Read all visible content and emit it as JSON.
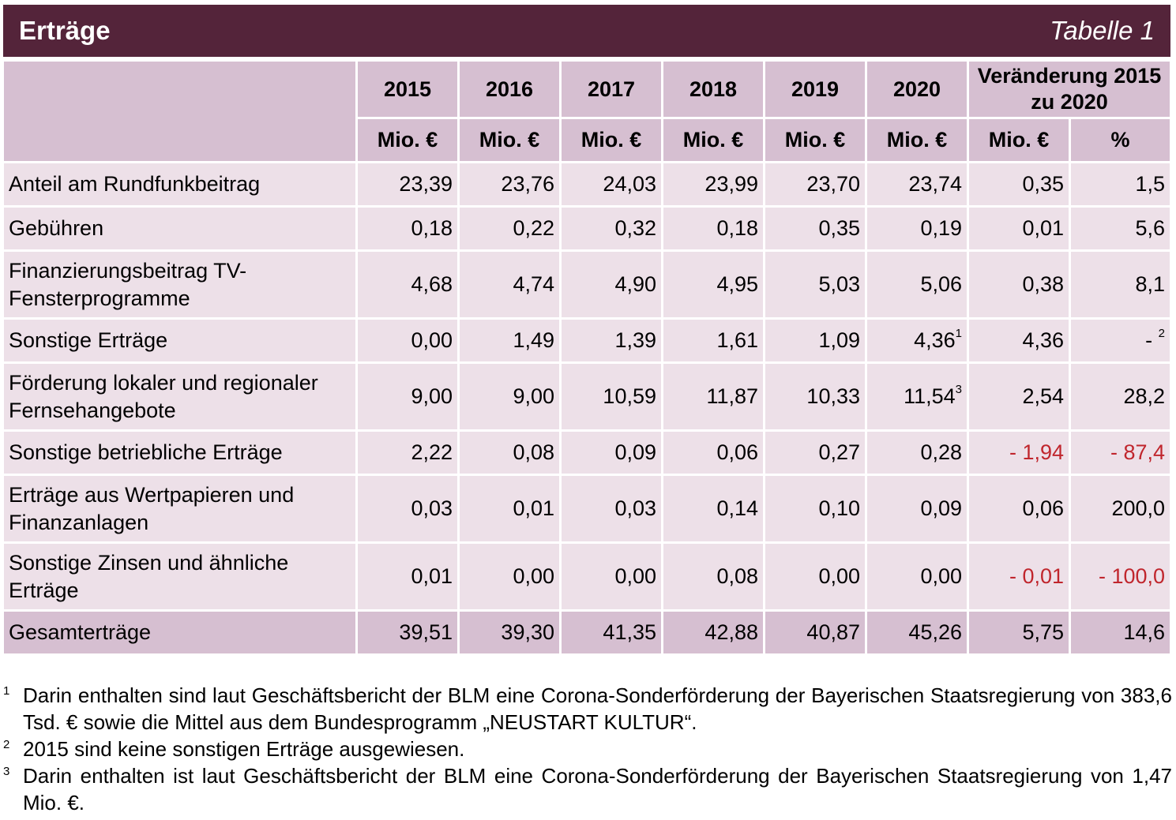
{
  "title": "Erträge",
  "table_number": "Tabelle 1",
  "header": {
    "years": [
      "2015",
      "2016",
      "2017",
      "2018",
      "2019",
      "2020"
    ],
    "change_label": "Veränderung 2015 zu 2020",
    "unit": "Mio. €",
    "percent": "%"
  },
  "rows": [
    {
      "label": "Anteil am Rundfunkbeitrag",
      "values": [
        "23,39",
        "23,76",
        "24,03",
        "23,99",
        "23,70",
        "23,74"
      ],
      "sup2020": "",
      "change_abs": "0,35",
      "change_pct": "1,5",
      "pct_sup": ""
    },
    {
      "label": "Gebühren",
      "values": [
        "0,18",
        "0,22",
        "0,32",
        "0,18",
        "0,35",
        "0,19"
      ],
      "sup2020": "",
      "change_abs": "0,01",
      "change_pct": "5,6",
      "pct_sup": ""
    },
    {
      "label": "Finanzierungsbeitrag TV-Fensterprogramme",
      "values": [
        "4,68",
        "4,74",
        "4,90",
        "4,95",
        "5,03",
        "5,06"
      ],
      "sup2020": "",
      "change_abs": "0,38",
      "change_pct": "8,1",
      "pct_sup": ""
    },
    {
      "label": "Sonstige Erträge",
      "values": [
        "0,00",
        "1,49",
        "1,39",
        "1,61",
        "1,09",
        "4,36"
      ],
      "sup2020": "1",
      "change_abs": "4,36",
      "change_pct": "-",
      "pct_sup": "2"
    },
    {
      "label": "Förderung lokaler und regionaler Fernsehangebote",
      "values": [
        "9,00",
        "9,00",
        "10,59",
        "11,87",
        "10,33",
        "11,54"
      ],
      "sup2020": "3",
      "change_abs": "2,54",
      "change_pct": "28,2",
      "pct_sup": ""
    },
    {
      "label": "Sonstige betriebliche Erträge",
      "values": [
        "2,22",
        "0,08",
        "0,09",
        "0,06",
        "0,27",
        "0,28"
      ],
      "sup2020": "",
      "change_abs": "- 1,94",
      "change_pct": "- 87,4",
      "pct_sup": "",
      "negative": true
    },
    {
      "label": "Erträge aus Wertpapieren und Finanzanlagen",
      "values": [
        "0,03",
        "0,01",
        "0,03",
        "0,14",
        "0,10",
        "0,09"
      ],
      "sup2020": "",
      "change_abs": "0,06",
      "change_pct": "200,0",
      "pct_sup": ""
    },
    {
      "label": "Sonstige Zinsen und ähnliche Erträge",
      "values": [
        "0,01",
        "0,00",
        "0,00",
        "0,08",
        "0,00",
        "0,00"
      ],
      "sup2020": "",
      "change_abs": "- 0,01",
      "change_pct": "- 100,0",
      "pct_sup": "",
      "negative": true
    }
  ],
  "total": {
    "label": "Gesamterträge",
    "values": [
      "39,51",
      "39,30",
      "41,35",
      "42,88",
      "40,87",
      "45,26"
    ],
    "change_abs": "5,75",
    "change_pct": "14,6"
  },
  "footnotes": [
    {
      "mark": "1",
      "text": "Darin enthalten sind laut Geschäftsbericht der BLM eine Corona-Sonderförderung der Bayerischen Staatsregierung von 383,6 Tsd. € sowie die Mittel aus dem Bundesprogramm „NEUSTART KULTUR“."
    },
    {
      "mark": "2",
      "text": "2015 sind keine sonstigen Erträge ausgewiesen."
    },
    {
      "mark": "3",
      "text": "Darin enthalten ist laut Geschäftsbericht der BLM eine Corona-Sonderförderung der Bayerischen Staatsregierung von 1,47 Mio. €."
    }
  ],
  "colors": {
    "title_bg": "#54243a",
    "header_bg": "#d6bfd1",
    "row_bg": "#ede0e8",
    "negative": "#c0262d"
  }
}
